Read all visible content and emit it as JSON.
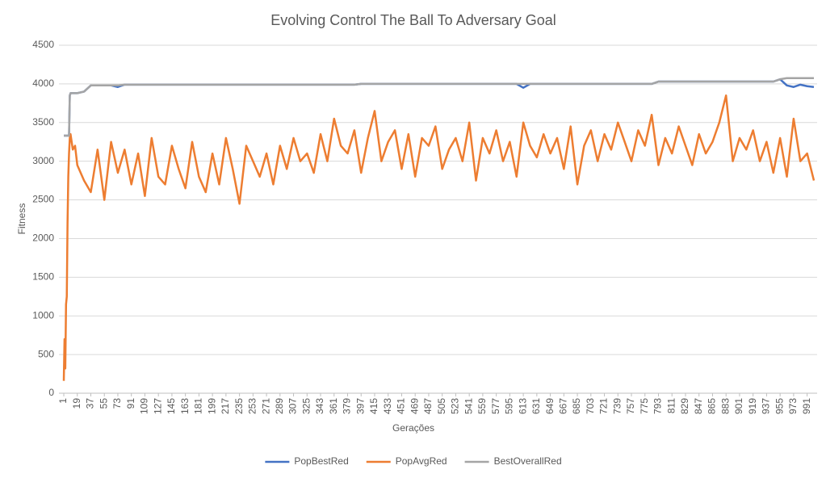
{
  "chart_data": {
    "type": "line",
    "title": "Evolving Control The Ball To Adversary Goal",
    "xlabel": "Gerações",
    "ylabel": "Fitness",
    "x": [
      1,
      2,
      3,
      4,
      5,
      6,
      7,
      8,
      9,
      10,
      13,
      16,
      19,
      28,
      37,
      46,
      55,
      64,
      73,
      82,
      91,
      100,
      109,
      118,
      127,
      136,
      145,
      154,
      163,
      172,
      181,
      190,
      199,
      208,
      217,
      226,
      235,
      244,
      253,
      262,
      271,
      280,
      289,
      298,
      307,
      316,
      325,
      334,
      343,
      352,
      361,
      370,
      379,
      388,
      397,
      406,
      415,
      424,
      433,
      442,
      451,
      460,
      469,
      478,
      487,
      496,
      505,
      514,
      523,
      532,
      541,
      550,
      559,
      568,
      577,
      586,
      595,
      604,
      613,
      622,
      631,
      640,
      649,
      658,
      667,
      676,
      685,
      694,
      703,
      712,
      721,
      730,
      739,
      748,
      757,
      766,
      775,
      784,
      793,
      802,
      811,
      820,
      829,
      838,
      847,
      856,
      865,
      874,
      883,
      892,
      901,
      910,
      919,
      928,
      937,
      946,
      955,
      964,
      973,
      982,
      991,
      1000
    ],
    "xlim": [
      1,
      1000
    ],
    "xticks": [
      1,
      19,
      37,
      55,
      73,
      91,
      109,
      127,
      145,
      163,
      181,
      199,
      217,
      235,
      253,
      271,
      289,
      307,
      325,
      343,
      361,
      379,
      397,
      415,
      433,
      451,
      469,
      487,
      505,
      523,
      541,
      559,
      577,
      595,
      613,
      631,
      649,
      667,
      685,
      703,
      721,
      739,
      757,
      775,
      793,
      811,
      829,
      847,
      865,
      883,
      901,
      919,
      937,
      955,
      973,
      991
    ],
    "ylim": [
      0,
      4500
    ],
    "yticks": [
      0,
      500,
      1000,
      1500,
      2000,
      2500,
      3000,
      3500,
      4000,
      4500
    ],
    "grid": true,
    "legend": "bottom",
    "series": [
      {
        "name": "PopBestRed",
        "color": "#4472c4",
        "values": [
          3330,
          3330,
          3330,
          3330,
          3330,
          3330,
          3330,
          3330,
          3850,
          3880,
          3880,
          3880,
          3880,
          3900,
          3980,
          3980,
          3980,
          3980,
          3960,
          3990,
          3990,
          3990,
          3990,
          3990,
          3990,
          3990,
          3990,
          3990,
          3990,
          3990,
          3990,
          3990,
          3990,
          3990,
          3990,
          3990,
          3990,
          3990,
          3990,
          3990,
          3990,
          3990,
          3990,
          3990,
          3990,
          3990,
          3990,
          3990,
          3990,
          3990,
          3990,
          3990,
          3990,
          3990,
          4000,
          4000,
          4000,
          4000,
          4000,
          4000,
          4000,
          4000,
          4000,
          4000,
          4000,
          4000,
          4000,
          4000,
          4000,
          4000,
          4000,
          4000,
          4000,
          4000,
          4000,
          4000,
          4000,
          4000,
          3950,
          4000,
          4000,
          4000,
          4000,
          4000,
          4000,
          4000,
          4000,
          4000,
          4000,
          4000,
          4000,
          4000,
          4000,
          4000,
          4000,
          4000,
          4000,
          4000,
          4030,
          4030,
          4030,
          4030,
          4030,
          4030,
          4030,
          4030,
          4030,
          4030,
          4030,
          4030,
          4030,
          4030,
          4030,
          4030,
          4030,
          4030,
          4060,
          3980,
          3960,
          3990,
          3970,
          3960
        ]
      },
      {
        "name": "PopAvgRed",
        "color": "#ed7d31",
        "values": [
          160,
          700,
          320,
          1150,
          1250,
          2200,
          2800,
          3100,
          3300,
          3350,
          3150,
          3200,
          2950,
          2750,
          2600,
          3150,
          2500,
          3250,
          2850,
          3150,
          2700,
          3100,
          2550,
          3300,
          2800,
          2700,
          3200,
          2900,
          2650,
          3250,
          2800,
          2600,
          3100,
          2700,
          3300,
          2900,
          2450,
          3200,
          3000,
          2800,
          3100,
          2700,
          3200,
          2900,
          3300,
          3000,
          3100,
          2850,
          3350,
          3000,
          3550,
          3200,
          3100,
          3400,
          2850,
          3300,
          3650,
          3000,
          3250,
          3400,
          2900,
          3350,
          2800,
          3300,
          3200,
          3450,
          2900,
          3150,
          3300,
          3000,
          3500,
          2750,
          3300,
          3100,
          3400,
          3000,
          3250,
          2800,
          3500,
          3200,
          3050,
          3350,
          3100,
          3300,
          2900,
          3450,
          2700,
          3200,
          3400,
          3000,
          3350,
          3150,
          3500,
          3250,
          3000,
          3400,
          3200,
          3600,
          2950,
          3300,
          3100,
          3450,
          3200,
          2950,
          3350,
          3100,
          3250,
          3500,
          3850,
          3000,
          3300,
          3150,
          3400,
          3000,
          3250,
          2850,
          3300,
          2800,
          3550,
          3000,
          3100,
          2750
        ]
      },
      {
        "name": "BestOverallRed",
        "color": "#a5a5a5",
        "values": [
          3330,
          3330,
          3330,
          3330,
          3330,
          3330,
          3330,
          3330,
          3850,
          3880,
          3880,
          3880,
          3880,
          3900,
          3980,
          3980,
          3980,
          3980,
          3980,
          3990,
          3990,
          3990,
          3990,
          3990,
          3990,
          3990,
          3990,
          3990,
          3990,
          3990,
          3990,
          3990,
          3990,
          3990,
          3990,
          3990,
          3990,
          3990,
          3990,
          3990,
          3990,
          3990,
          3990,
          3990,
          3990,
          3990,
          3990,
          3990,
          3990,
          3990,
          3990,
          3990,
          3990,
          3990,
          4000,
          4000,
          4000,
          4000,
          4000,
          4000,
          4000,
          4000,
          4000,
          4000,
          4000,
          4000,
          4000,
          4000,
          4000,
          4000,
          4000,
          4000,
          4000,
          4000,
          4000,
          4000,
          4000,
          4000,
          4000,
          4000,
          4000,
          4000,
          4000,
          4000,
          4000,
          4000,
          4000,
          4000,
          4000,
          4000,
          4000,
          4000,
          4000,
          4000,
          4000,
          4000,
          4000,
          4000,
          4030,
          4030,
          4030,
          4030,
          4030,
          4030,
          4030,
          4030,
          4030,
          4030,
          4030,
          4030,
          4030,
          4030,
          4030,
          4030,
          4030,
          4030,
          4060,
          4075,
          4075,
          4075,
          4075,
          4075
        ]
      }
    ]
  }
}
